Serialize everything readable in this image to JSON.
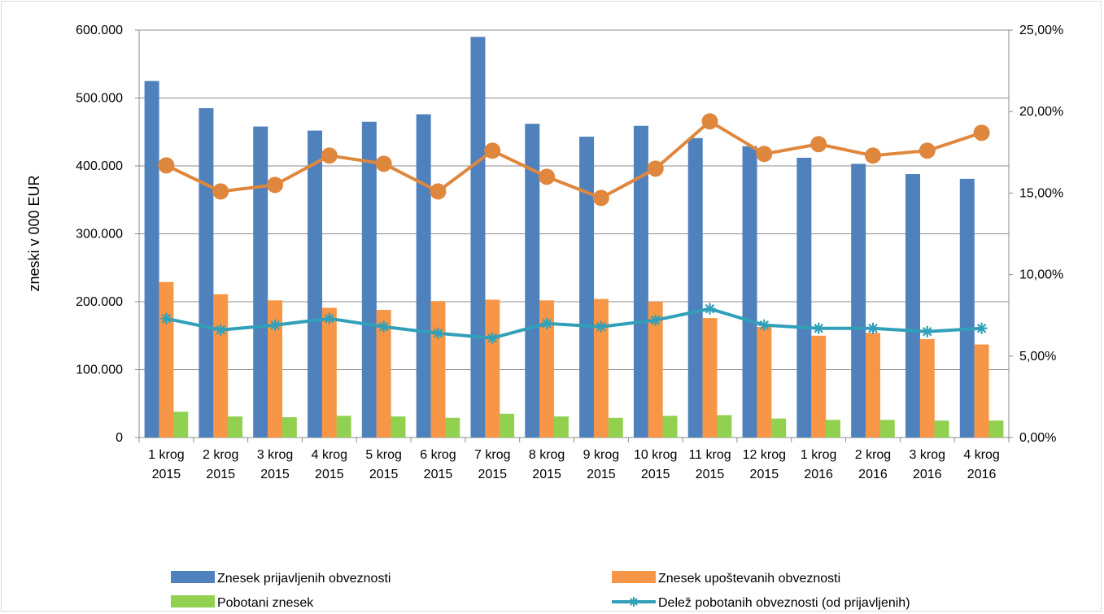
{
  "chart_data": {
    "type": "bar",
    "categories": [
      [
        "1 krog",
        "2015"
      ],
      [
        "2 krog",
        "2015"
      ],
      [
        "3 krog",
        "2015"
      ],
      [
        "4 krog",
        "2015"
      ],
      [
        "5 krog",
        "2015"
      ],
      [
        "6 krog",
        "2015"
      ],
      [
        "7 krog",
        "2015"
      ],
      [
        "8 krog",
        "2015"
      ],
      [
        "9 krog",
        "2015"
      ],
      [
        "10 krog",
        "2015"
      ],
      [
        "11 krog",
        "2015"
      ],
      [
        "12 krog",
        "2015"
      ],
      [
        "1 krog",
        "2016"
      ],
      [
        "2 krog",
        "2016"
      ],
      [
        "3 krog",
        "2016"
      ],
      [
        "4 krog",
        "2016"
      ]
    ],
    "ylabel": "zneski v 000 EUR",
    "y_left": {
      "min": 0,
      "max": 600000,
      "ticks": [
        0,
        100000,
        200000,
        300000,
        400000,
        500000,
        600000
      ],
      "tick_labels": [
        "0",
        "100.000",
        "200.000",
        "300.000",
        "400.000",
        "500.000",
        "600.000"
      ]
    },
    "y_right": {
      "min": 0,
      "max": 25,
      "unit": "%",
      "ticks": [
        0,
        5,
        10,
        15,
        20,
        25
      ],
      "tick_labels": [
        "0,00%",
        "5,00%",
        "10,00%",
        "15,00%",
        "20,00%",
        "25,00%"
      ]
    },
    "grid": true,
    "legend_position": "bottom",
    "series": [
      {
        "name": "Znesek prijavljenih obveznosti",
        "kind": "bar",
        "axis": "left",
        "color": "#4f81bd",
        "values": [
          525000,
          485000,
          458000,
          452000,
          465000,
          476000,
          590000,
          462000,
          443000,
          459000,
          441000,
          429000,
          412000,
          403000,
          388000,
          381000
        ]
      },
      {
        "name": "Znesek upoštevanih obveznosti",
        "kind": "bar",
        "axis": "left",
        "color": "#f79646",
        "values": [
          229000,
          211000,
          202000,
          191000,
          188000,
          201000,
          203000,
          202000,
          204000,
          200000,
          176000,
          163000,
          150000,
          154000,
          145000,
          137000
        ]
      },
      {
        "name": "Pobotani znesek",
        "kind": "bar",
        "axis": "left",
        "color": "#92d050",
        "values": [
          38000,
          31000,
          30000,
          32000,
          31000,
          29000,
          35000,
          31000,
          29000,
          32000,
          33000,
          28000,
          26000,
          26000,
          25000,
          25000
        ]
      },
      {
        "name": "Delež pobotanih obveznosti (od prijavljenih)",
        "kind": "line",
        "marker": "star",
        "axis": "right",
        "color": "#31a0b8",
        "values": [
          7.3,
          6.6,
          6.9,
          7.3,
          6.8,
          6.4,
          6.1,
          7.0,
          6.8,
          7.2,
          7.9,
          6.9,
          6.7,
          6.7,
          6.5,
          6.7
        ]
      },
      {
        "name": "",
        "kind": "line",
        "marker": "circle",
        "axis": "right",
        "color": "#e0873e",
        "values": [
          16.7,
          15.1,
          15.5,
          17.3,
          16.8,
          15.1,
          17.6,
          16.0,
          14.7,
          16.5,
          19.4,
          17.4,
          18.0,
          17.3,
          17.6,
          18.7
        ]
      }
    ],
    "legend": [
      {
        "series": 0,
        "label": "Znesek prijavljenih obveznosti"
      },
      {
        "series": 1,
        "label": "Znesek upoštevanih obveznosti"
      },
      {
        "series": 2,
        "label": "Pobotani znesek"
      },
      {
        "series": 3,
        "label": "Delež pobotanih obveznosti (od prijavljenih)"
      }
    ]
  }
}
